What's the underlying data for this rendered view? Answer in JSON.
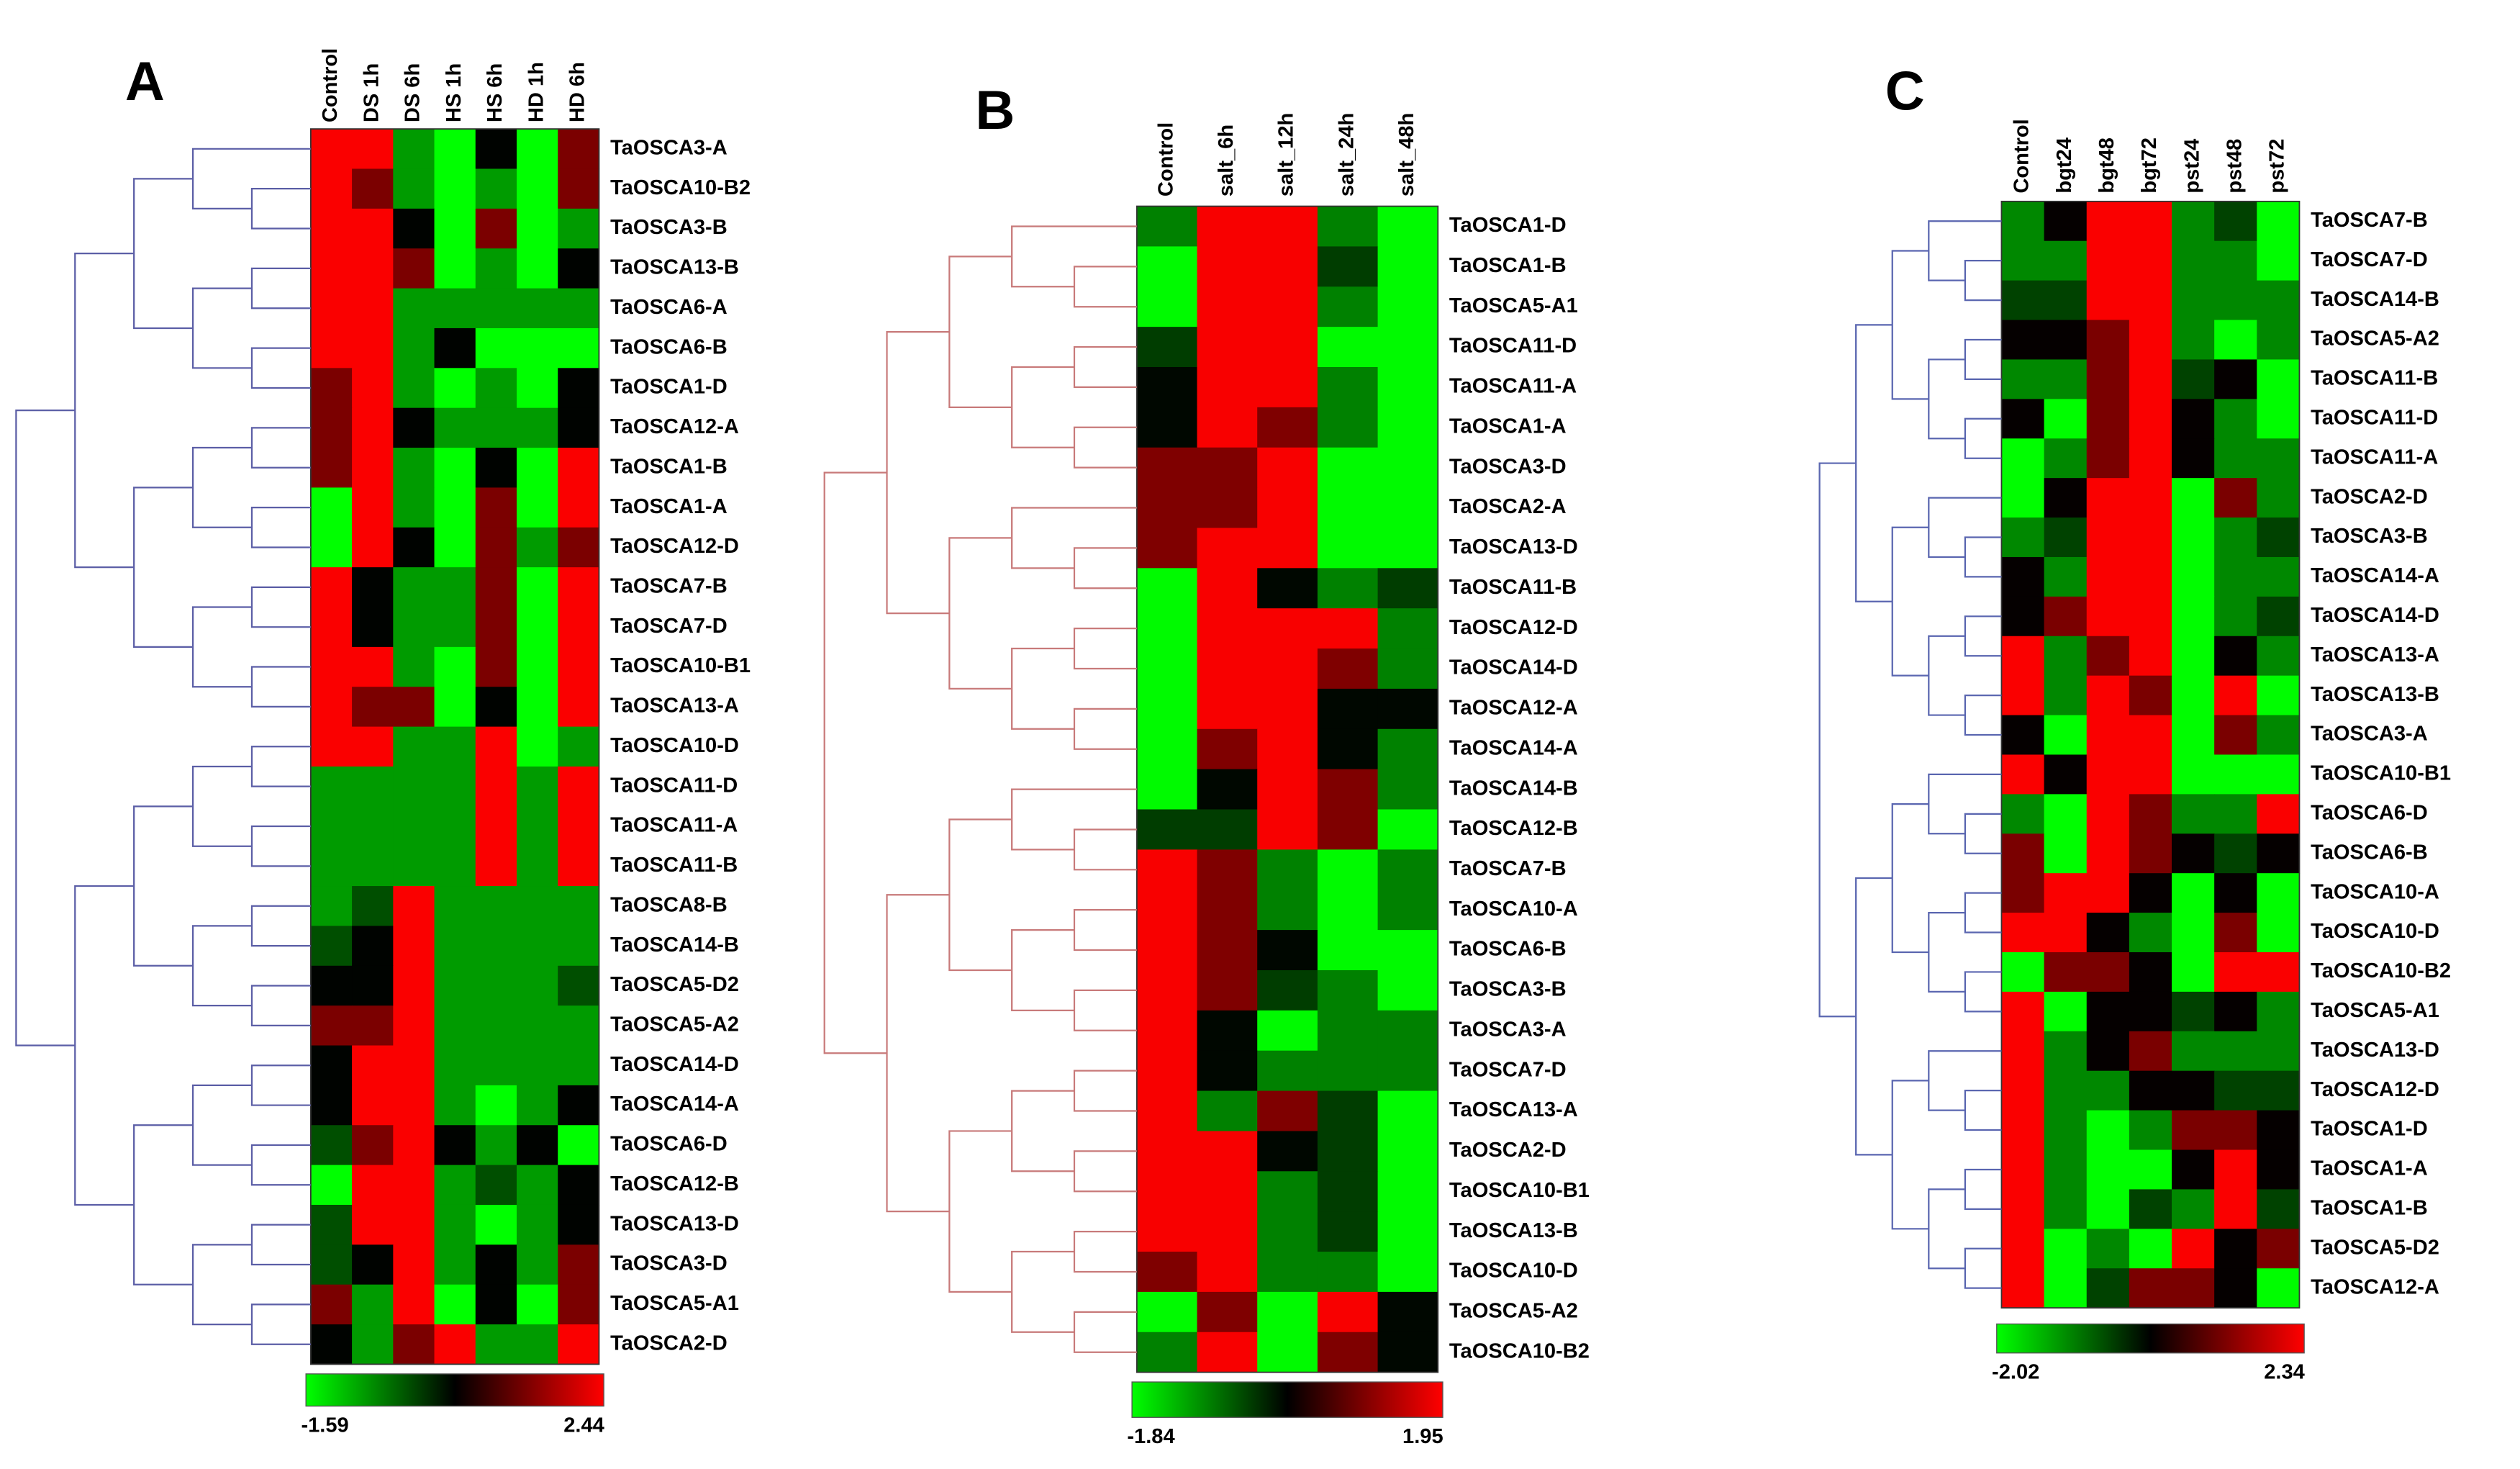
{
  "chart_data": [
    {
      "type": "heatmap",
      "label": "A",
      "columns": [
        "Control",
        "DS 1h",
        "DS 6h",
        "HS 1h",
        "HS 6h",
        "HD 1h",
        "HD 6h"
      ],
      "rows": [
        "TaOSCA3-A",
        "TaOSCA10-B2",
        "TaOSCA3-B",
        "TaOSCA13-B",
        "TaOSCA6-A",
        "TaOSCA6-B",
        "TaOSCA1-D",
        "TaOSCA12-A",
        "TaOSCA1-B",
        "TaOSCA1-A",
        "TaOSCA12-D",
        "TaOSCA7-B",
        "TaOSCA7-D",
        "TaOSCA10-B1",
        "TaOSCA13-A",
        "TaOSCA10-D",
        "TaOSCA11-D",
        "TaOSCA11-A",
        "TaOSCA11-B",
        "TaOSCA8-B",
        "TaOSCA14-B",
        "TaOSCA5-D2",
        "TaOSCA5-A2",
        "TaOSCA14-D",
        "TaOSCA14-A",
        "TaOSCA6-D",
        "TaOSCA12-B",
        "TaOSCA13-D",
        "TaOSCA3-D",
        "TaOSCA5-A1",
        "TaOSCA2-D"
      ],
      "values": [
        [
          2.4,
          2.4,
          -0.8,
          -1.6,
          0.4,
          -1.6,
          1.4
        ],
        [
          2.4,
          1.4,
          -0.8,
          -1.6,
          -0.8,
          -1.6,
          1.4
        ],
        [
          2.4,
          2.4,
          0.4,
          -1.6,
          1.4,
          -1.6,
          -0.8
        ],
        [
          2.4,
          2.4,
          1.4,
          -1.6,
          -0.8,
          -1.6,
          0.4
        ],
        [
          2.4,
          2.4,
          -0.8,
          -0.8,
          -0.8,
          -0.8,
          -0.8
        ],
        [
          2.4,
          2.4,
          -0.8,
          0.4,
          -1.6,
          -1.6,
          -1.6
        ],
        [
          1.4,
          2.4,
          -0.8,
          -1.6,
          -0.8,
          -1.6,
          0.4
        ],
        [
          1.4,
          2.4,
          0.4,
          -0.8,
          -0.8,
          -0.8,
          0.4
        ],
        [
          1.4,
          2.4,
          -0.8,
          -1.6,
          0.4,
          -1.6,
          2.4
        ],
        [
          -1.6,
          2.4,
          -0.8,
          -1.6,
          1.4,
          -1.6,
          2.4
        ],
        [
          -1.6,
          2.4,
          0.4,
          -1.6,
          1.4,
          -0.8,
          1.4
        ],
        [
          2.4,
          0.4,
          -0.8,
          -0.8,
          1.4,
          -1.6,
          2.4
        ],
        [
          2.4,
          0.4,
          -0.8,
          -0.8,
          1.4,
          -1.6,
          2.4
        ],
        [
          2.4,
          2.4,
          -0.8,
          -1.6,
          1.4,
          -1.6,
          2.4
        ],
        [
          2.4,
          1.4,
          1.4,
          -1.6,
          0.4,
          -1.6,
          2.4
        ],
        [
          2.4,
          2.4,
          -0.8,
          -0.8,
          2.4,
          -1.6,
          -0.8
        ],
        [
          -0.8,
          -0.8,
          -0.8,
          -0.8,
          2.4,
          -0.8,
          2.4
        ],
        [
          -0.8,
          -0.8,
          -0.8,
          -0.8,
          2.4,
          -0.8,
          2.4
        ],
        [
          -0.8,
          -0.8,
          -0.8,
          -0.8,
          2.4,
          -0.8,
          2.4
        ],
        [
          -0.8,
          -0.2,
          2.4,
          -0.8,
          -0.8,
          -0.8,
          -0.8
        ],
        [
          -0.2,
          0.4,
          2.4,
          -0.8,
          -0.8,
          -0.8,
          -0.8
        ],
        [
          0.4,
          0.4,
          2.4,
          -0.8,
          -0.8,
          -0.8,
          -0.2
        ],
        [
          1.4,
          1.4,
          2.4,
          -0.8,
          -0.8,
          -0.8,
          -0.8
        ],
        [
          0.4,
          2.4,
          2.4,
          -0.8,
          -0.8,
          -0.8,
          -0.8
        ],
        [
          0.4,
          2.4,
          2.4,
          -0.8,
          -1.6,
          -0.8,
          0.4
        ],
        [
          -0.2,
          1.4,
          2.4,
          0.4,
          -0.8,
          0.4,
          -1.6
        ],
        [
          -1.6,
          2.4,
          2.4,
          -0.8,
          -0.2,
          -0.8,
          0.4
        ],
        [
          -0.2,
          2.4,
          2.4,
          -0.8,
          -1.6,
          -0.8,
          0.4
        ],
        [
          -0.2,
          0.4,
          2.4,
          -0.8,
          0.4,
          -0.8,
          1.4
        ],
        [
          1.4,
          -0.8,
          2.4,
          -1.6,
          0.4,
          -1.6,
          1.4
        ],
        [
          0.4,
          -0.8,
          1.4,
          2.4,
          -0.8,
          -0.8,
          2.4
        ]
      ],
      "zlim": [
        -1.59,
        2.44
      ],
      "colors": [
        "#00ff00",
        "#000000",
        "#ff0000"
      ],
      "tree_color": "#5b5ea6"
    },
    {
      "type": "heatmap",
      "label": "B",
      "columns": [
        "Control",
        "salt_6h",
        "salt_12h",
        "salt_24h",
        "salt_48h"
      ],
      "rows": [
        "TaOSCA1-D",
        "TaOSCA1-B",
        "TaOSCA5-A1",
        "TaOSCA11-D",
        "TaOSCA11-A",
        "TaOSCA1-A",
        "TaOSCA3-D",
        "TaOSCA2-A",
        "TaOSCA13-D",
        "TaOSCA11-B",
        "TaOSCA12-D",
        "TaOSCA14-D",
        "TaOSCA12-A",
        "TaOSCA14-A",
        "TaOSCA14-B",
        "TaOSCA12-B",
        "TaOSCA7-B",
        "TaOSCA10-A",
        "TaOSCA6-B",
        "TaOSCA3-B",
        "TaOSCA3-A",
        "TaOSCA7-D",
        "TaOSCA13-A",
        "TaOSCA2-D",
        "TaOSCA10-B1",
        "TaOSCA13-B",
        "TaOSCA10-D",
        "TaOSCA5-A2",
        "TaOSCA10-B2"
      ],
      "values": [
        [
          -0.9,
          1.9,
          1.9,
          -0.9,
          -1.8
        ],
        [
          -1.8,
          1.9,
          1.9,
          -0.4,
          -1.8
        ],
        [
          -1.8,
          1.9,
          1.9,
          -0.9,
          -1.8
        ],
        [
          -0.4,
          1.9,
          1.9,
          -1.8,
          -1.8
        ],
        [
          0,
          1.9,
          1.9,
          -0.9,
          -1.8
        ],
        [
          0,
          1.9,
          1,
          -0.9,
          -1.8
        ],
        [
          1,
          1,
          1.9,
          -1.8,
          -1.8
        ],
        [
          1,
          1,
          1.9,
          -1.8,
          -1.8
        ],
        [
          1,
          1.9,
          1.9,
          -1.8,
          -1.8
        ],
        [
          -1.8,
          1.9,
          0,
          -0.9,
          -0.4
        ],
        [
          -1.8,
          1.9,
          1.9,
          1.9,
          -0.9
        ],
        [
          -1.8,
          1.9,
          1.9,
          1,
          -0.9
        ],
        [
          -1.8,
          1.9,
          1.9,
          0,
          0
        ],
        [
          -1.8,
          1,
          1.9,
          0,
          -0.9
        ],
        [
          -1.8,
          0,
          1.9,
          1,
          -0.9
        ],
        [
          -0.4,
          -0.4,
          1.9,
          1,
          -1.8
        ],
        [
          1.9,
          1,
          -0.9,
          -1.8,
          -0.9
        ],
        [
          1.9,
          1,
          -0.9,
          -1.8,
          -0.9
        ],
        [
          1.9,
          1,
          0,
          -1.8,
          -1.8
        ],
        [
          1.9,
          1,
          -0.4,
          -0.9,
          -1.8
        ],
        [
          1.9,
          0,
          -1.8,
          -0.9,
          -0.9
        ],
        [
          1.9,
          0,
          -0.9,
          -0.9,
          -0.9
        ],
        [
          1.9,
          -0.9,
          1,
          -0.4,
          -1.8
        ],
        [
          1.9,
          1.9,
          0,
          -0.4,
          -1.8
        ],
        [
          1.9,
          1.9,
          -0.9,
          -0.4,
          -1.8
        ],
        [
          1.9,
          1.9,
          -0.9,
          -0.4,
          -1.8
        ],
        [
          1,
          1.9,
          -0.9,
          -0.9,
          -1.8
        ],
        [
          -1.8,
          1,
          -1.8,
          1.9,
          0
        ],
        [
          -0.9,
          1.9,
          -1.8,
          1,
          0
        ]
      ],
      "zlim": [
        -1.84,
        1.95
      ],
      "colors": [
        "#00ff00",
        "#000000",
        "#ff0000"
      ],
      "tree_color": "#c87a7a"
    },
    {
      "type": "heatmap",
      "label": "C",
      "columns": [
        "Control",
        "bgt24",
        "bgt48",
        "bgt72",
        "pst24",
        "pst48",
        "pst72"
      ],
      "rows": [
        "TaOSCA7-B",
        "TaOSCA7-D",
        "TaOSCA14-B",
        "TaOSCA5-A2",
        "TaOSCA11-B",
        "TaOSCA11-D",
        "TaOSCA11-A",
        "TaOSCA2-D",
        "TaOSCA3-B",
        "TaOSCA14-A",
        "TaOSCA14-D",
        "TaOSCA13-A",
        "TaOSCA13-B",
        "TaOSCA3-A",
        "TaOSCA10-B1",
        "TaOSCA6-D",
        "TaOSCA6-B",
        "TaOSCA10-A",
        "TaOSCA10-D",
        "TaOSCA10-B2",
        "TaOSCA5-A1",
        "TaOSCA13-D",
        "TaOSCA12-D",
        "TaOSCA1-D",
        "TaOSCA1-A",
        "TaOSCA1-B",
        "TaOSCA5-D2",
        "TaOSCA12-A"
      ],
      "values": [
        [
          -1,
          0.2,
          2.3,
          2.3,
          -1,
          -0.4,
          -2
        ],
        [
          -1,
          -1,
          2.3,
          2.3,
          -1,
          -1,
          -2
        ],
        [
          -0.4,
          -0.4,
          2.3,
          2.3,
          -1,
          -1,
          -1
        ],
        [
          0.2,
          0.2,
          1.2,
          2.3,
          -1,
          -2,
          -1
        ],
        [
          -1,
          -1,
          1.2,
          2.3,
          -0.4,
          0.2,
          -2
        ],
        [
          0.2,
          -2,
          1.2,
          2.3,
          0.2,
          -1,
          -2
        ],
        [
          -2,
          -1,
          1.2,
          2.3,
          0.2,
          -1,
          -1
        ],
        [
          -2,
          0.2,
          2.3,
          2.3,
          -2,
          1.2,
          -1
        ],
        [
          -1,
          -0.4,
          2.3,
          2.3,
          -2,
          -1,
          -0.4
        ],
        [
          0.2,
          -1,
          2.3,
          2.3,
          -2,
          -1,
          -1
        ],
        [
          0.2,
          1.2,
          2.3,
          2.3,
          -2,
          -1,
          -0.4
        ],
        [
          2.3,
          -1,
          1.2,
          2.3,
          -2,
          0.2,
          -1
        ],
        [
          2.3,
          -1,
          2.3,
          1.2,
          -2,
          2.3,
          -2
        ],
        [
          0.2,
          -2,
          2.3,
          2.3,
          -2,
          1.2,
          -1
        ],
        [
          2.3,
          0.2,
          2.3,
          2.3,
          -2,
          -2,
          -2
        ],
        [
          -1,
          -2,
          2.3,
          1.2,
          -1,
          -1,
          2.3
        ],
        [
          1.2,
          -2,
          2.3,
          1.2,
          0.2,
          -0.4,
          0.2
        ],
        [
          1.2,
          2.3,
          2.3,
          0.2,
          -2,
          0.2,
          -2
        ],
        [
          2.3,
          2.3,
          0.2,
          -1,
          -2,
          1.2,
          -2
        ],
        [
          -2,
          1.2,
          1.2,
          0.2,
          -2,
          2.3,
          2.3
        ],
        [
          2.3,
          -2,
          0.2,
          0.2,
          -0.4,
          0.2,
          -1
        ],
        [
          2.3,
          -1,
          0.2,
          1.2,
          -1,
          -1,
          -1
        ],
        [
          2.3,
          -1,
          -1,
          0.2,
          0.2,
          -0.4,
          -0.4
        ],
        [
          2.3,
          -1,
          -2,
          -1,
          1.2,
          1.2,
          0.2
        ],
        [
          2.3,
          -1,
          -2,
          -2,
          0.2,
          2.3,
          0.2
        ],
        [
          2.3,
          -1,
          -2,
          -0.4,
          -1,
          2.3,
          -0.4
        ],
        [
          2.3,
          -2,
          -1,
          -2,
          2.3,
          0.2,
          1.2
        ],
        [
          2.3,
          -2,
          -0.4,
          1.2,
          1.2,
          0.2,
          -2
        ]
      ],
      "zlim": [
        -2.02,
        2.34
      ],
      "colors": [
        "#00ff00",
        "#000000",
        "#ff0000"
      ],
      "tree_color": "#5a66b0"
    }
  ]
}
